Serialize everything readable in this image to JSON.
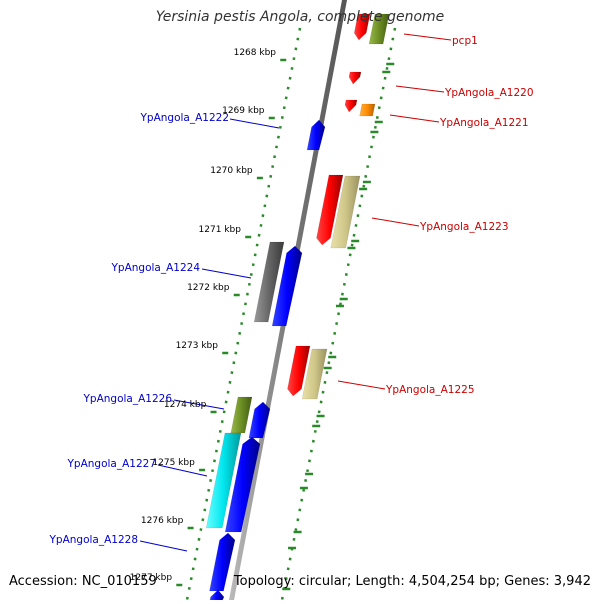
{
  "title": "Yersinia pestis Angola, complete genome",
  "footer": {
    "accession": "Accession: NC_010159",
    "summary": "Topology: circular; Length: 4,504,254 bp; Genes: 3,942"
  },
  "colors": {
    "backbone": "#777777",
    "tick_dots": "#2a8a2a",
    "label_left": "#0000cc",
    "label_right": "#cc0000"
  },
  "kbp_ticks": [
    {
      "label": "1268 kbp"
    },
    {
      "label": "1269 kbp"
    },
    {
      "label": "1270 kbp"
    },
    {
      "label": "1271 kbp"
    },
    {
      "label": "1272 kbp"
    },
    {
      "label": "1273 kbp"
    },
    {
      "label": "1274 kbp"
    },
    {
      "label": "1275 kbp"
    },
    {
      "label": "1276 kbp"
    },
    {
      "label": "1277 kbp"
    }
  ],
  "gene_labels": [
    {
      "text": "pcp1",
      "side": "right"
    },
    {
      "text": "YpAngola_A1220",
      "side": "right"
    },
    {
      "text": "YpAngola_A1221",
      "side": "right"
    },
    {
      "text": "YpAngola_A1222",
      "side": "left"
    },
    {
      "text": "YpAngola_A1223",
      "side": "right"
    },
    {
      "text": "YpAngola_A1224",
      "side": "left"
    },
    {
      "text": "YpAngola_A1225",
      "side": "right"
    },
    {
      "text": "YpAngola_A1226",
      "side": "left"
    },
    {
      "text": "YpAngola_A1227",
      "side": "left"
    },
    {
      "text": "YpAngola_A1228",
      "side": "left"
    }
  ]
}
